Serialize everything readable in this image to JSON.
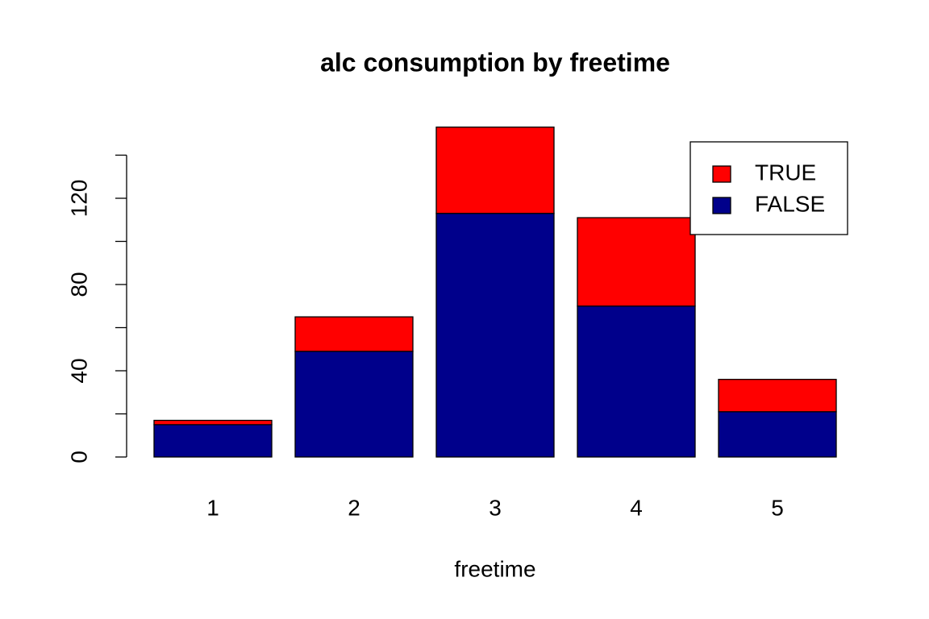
{
  "chart_data": {
    "type": "stacked_bar",
    "title": "alc consumption by freetime",
    "x_label": "freetime",
    "categories": [
      "1",
      "2",
      "3",
      "4",
      "5"
    ],
    "series": [
      {
        "name": "TRUE",
        "color": "#ff0000",
        "values": [
          2,
          16,
          40,
          41,
          15
        ]
      },
      {
        "name": "FALSE",
        "color": "#00008b",
        "values": [
          15,
          49,
          113,
          70,
          21
        ]
      }
    ],
    "ylim": [
      0,
      140
    ],
    "yticks": [
      0,
      40,
      80,
      120
    ],
    "minor_yticks": [
      20,
      60,
      100,
      140
    ],
    "legend": "top-right",
    "grid": false
  }
}
